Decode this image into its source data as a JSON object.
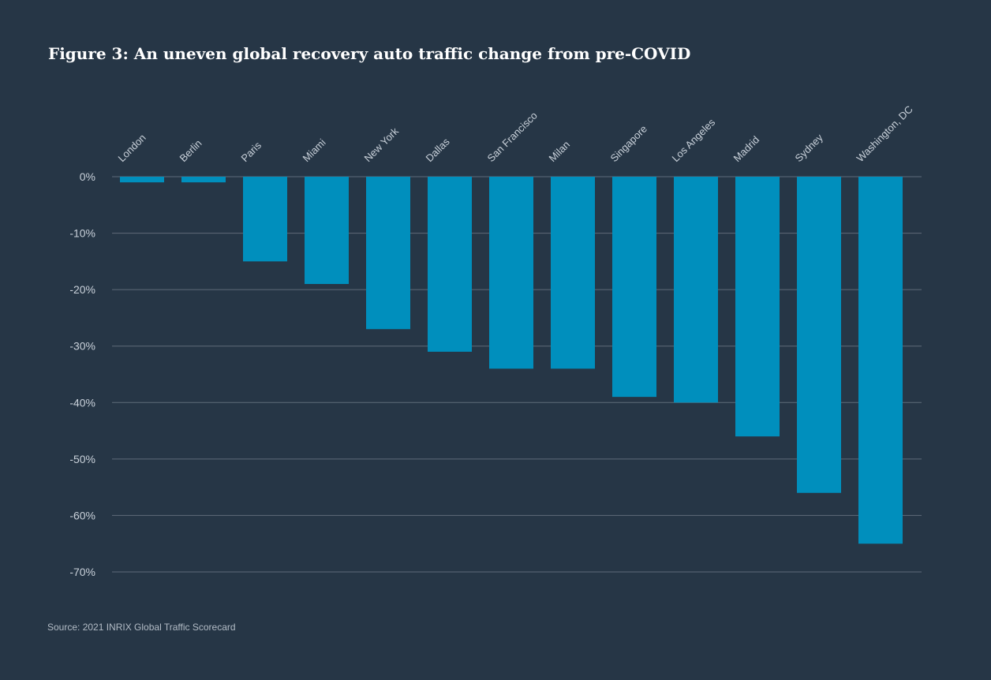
{
  "title": "Figure 3: An uneven global recovery auto traffic change from pre-COVID",
  "source": "Source: 2021 INRIX Global Traffic Scorecard",
  "colors": {
    "background": "#263646",
    "bar": "#008fbd",
    "gridline": "#5f6b79",
    "text": "#c9d1da"
  },
  "chart_data": {
    "type": "bar",
    "title": "Figure 3: An uneven global recovery auto traffic change from pre-COVID",
    "xlabel": "",
    "ylabel": "",
    "categories": [
      "London",
      "Berlin",
      "Paris",
      "Miami",
      "New York",
      "Dallas",
      "San Francisco",
      "Milan",
      "Singapore",
      "Los Angeles",
      "Madrid",
      "Sydney",
      "Washington, DC"
    ],
    "values": [
      -1,
      -1,
      -15,
      -19,
      -27,
      -31,
      -34,
      -34,
      -39,
      -40,
      -46,
      -56,
      -65
    ],
    "unit": "%",
    "ylim": [
      -70,
      0
    ],
    "yticks": [
      0,
      -10,
      -20,
      -30,
      -40,
      -50,
      -60,
      -70
    ],
    "ytick_labels": [
      "0%",
      "-10%",
      "-20%",
      "-30%",
      "-40%",
      "-50%",
      "-60%",
      "-70%"
    ],
    "grid": true,
    "category_label_position": "top, rotated"
  }
}
